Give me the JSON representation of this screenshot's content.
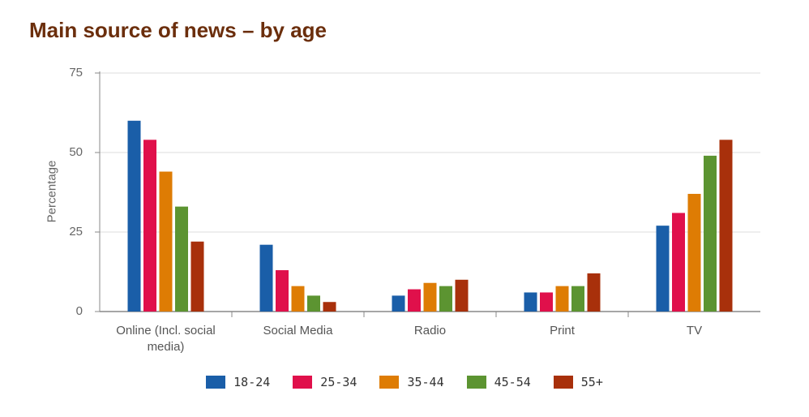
{
  "chart_data": {
    "type": "bar",
    "title": "Main source of news – by age",
    "xlabel": "",
    "ylabel": "Percentage",
    "ylim": [
      0,
      75
    ],
    "yticks": [
      "0",
      "25",
      "50",
      "75"
    ],
    "ytick_values": [
      0,
      25,
      50,
      75
    ],
    "grid": true,
    "legend_position": "bottom",
    "categories": [
      "Online (Incl. social media)",
      "Social Media",
      "Radio",
      "Print",
      "TV"
    ],
    "series": [
      {
        "name": "18-24",
        "color": "#1a5ea8",
        "values": [
          60,
          21,
          5,
          6,
          27
        ]
      },
      {
        "name": "25-34",
        "color": "#e0104b",
        "values": [
          54,
          13,
          7,
          6,
          31
        ]
      },
      {
        "name": "35-44",
        "color": "#de7c04",
        "values": [
          44,
          8,
          9,
          8,
          37
        ]
      },
      {
        "name": "45-54",
        "color": "#5c9431",
        "values": [
          33,
          5,
          8,
          8,
          49
        ]
      },
      {
        "name": "55+",
        "color": "#a8300b",
        "values": [
          22,
          3,
          10,
          12,
          54
        ]
      }
    ]
  }
}
